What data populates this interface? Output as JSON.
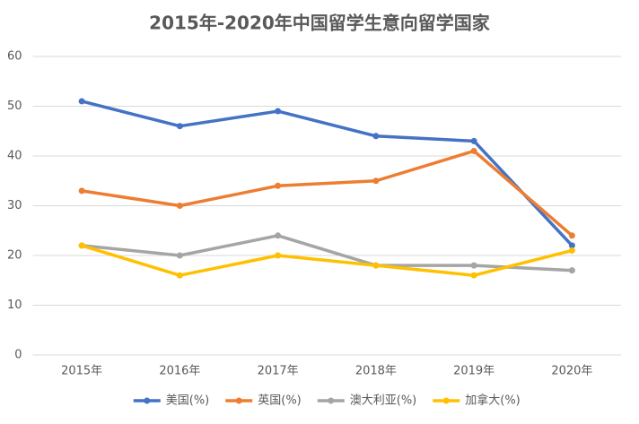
{
  "chart_data": {
    "type": "line",
    "title": "2015年-2020年中国留学生意向留学国家",
    "categories": [
      "2015年",
      "2016年",
      "2017年",
      "2018年",
      "2019年",
      "2020年"
    ],
    "series": [
      {
        "name": "美国(%)",
        "color": "#4472c4",
        "values": [
          51,
          46,
          49,
          44,
          43,
          22
        ]
      },
      {
        "name": "英国(%)",
        "color": "#ed7d31",
        "values": [
          33,
          30,
          34,
          35,
          41,
          24
        ]
      },
      {
        "name": "澳大利亚(%)",
        "color": "#a5a5a5",
        "values": [
          22,
          20,
          24,
          18,
          18,
          17
        ]
      },
      {
        "name": "加拿大(%)",
        "color": "#ffc000",
        "values": [
          22,
          16,
          20,
          18,
          16,
          21
        ]
      }
    ],
    "ylim": [
      0,
      60
    ],
    "yticks": [
      0,
      10,
      20,
      30,
      40,
      50,
      60
    ],
    "grid": true,
    "legend": "bottom"
  }
}
